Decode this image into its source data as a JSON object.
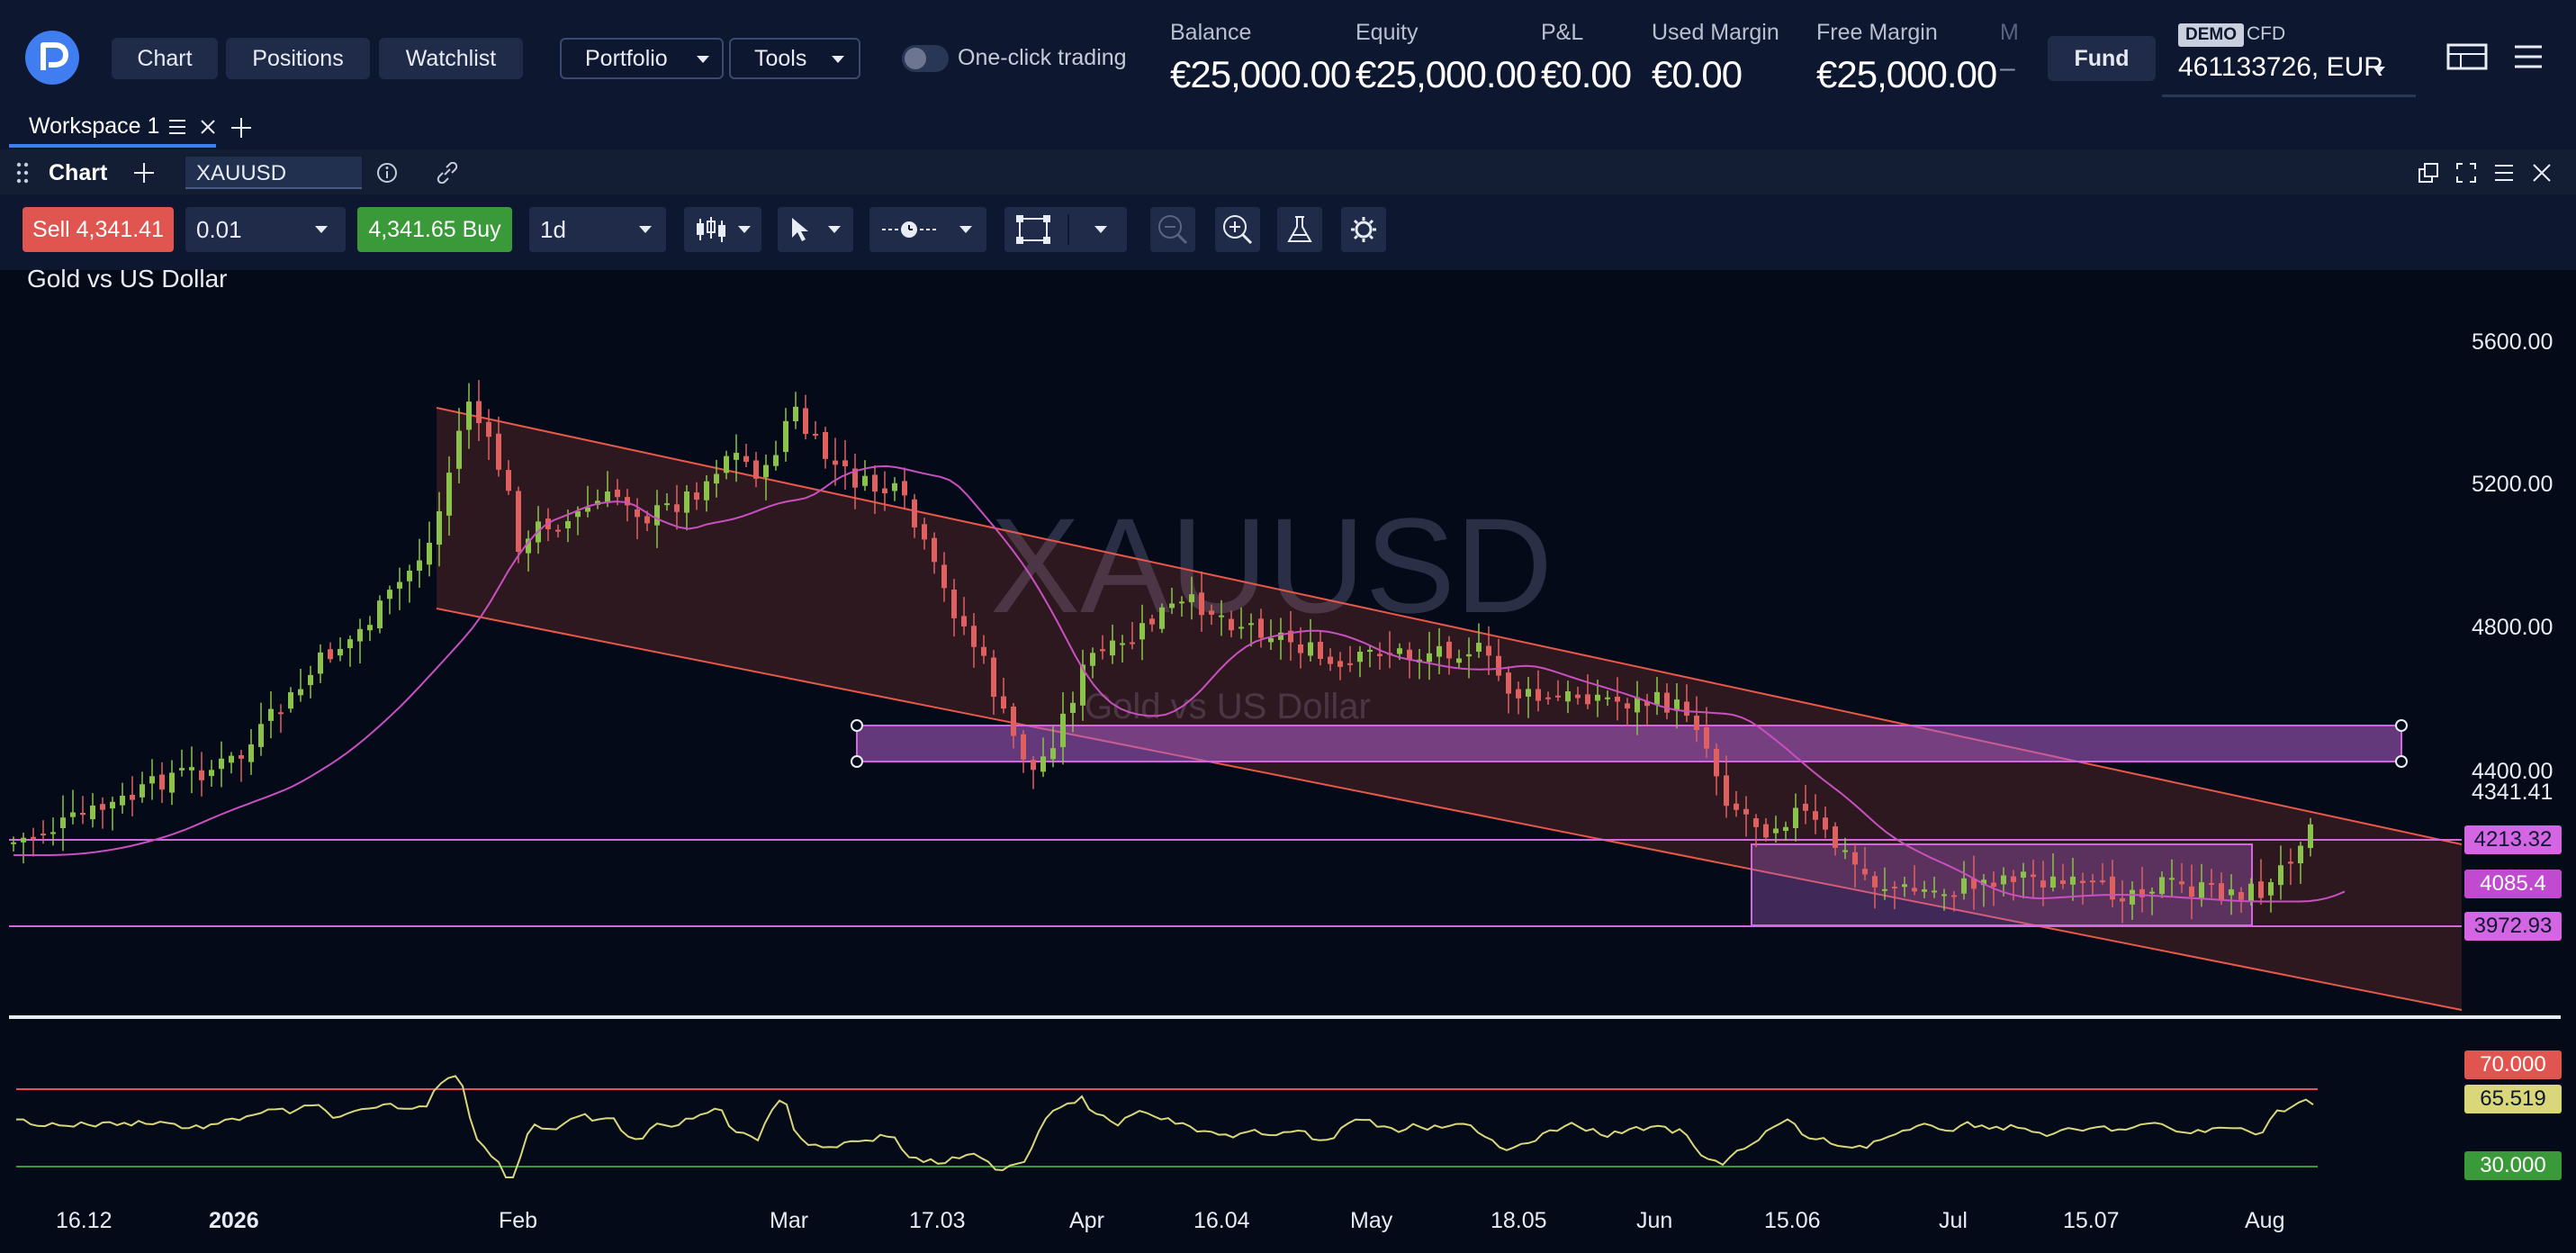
{
  "nav": {
    "tabs": [
      "Chart",
      "Positions",
      "Watchlist"
    ],
    "menus": [
      "Portfolio",
      "Tools"
    ],
    "one_click_label": "One-click trading",
    "fund_label": "Fund"
  },
  "account": {
    "stats": [
      {
        "label": "Balance",
        "value": "€25,000.00"
      },
      {
        "label": "Equity",
        "value": "€25,000.00"
      },
      {
        "label": "P&L",
        "value": "€0.00"
      },
      {
        "label": "Used Margin",
        "value": "€0.00"
      },
      {
        "label": "Free Margin",
        "value": "€25,000.00"
      },
      {
        "label": "M",
        "value": "–"
      }
    ],
    "badge": "DEMO",
    "type": "CFD",
    "number": "461133726, EUR"
  },
  "workspace": {
    "tab_label": "Workspace 1"
  },
  "panel": {
    "title": "Chart",
    "symbol": "XAUUSD"
  },
  "toolbar": {
    "sell_label": "Sell",
    "sell_price": "4,341.41",
    "quantity": "0.01",
    "buy_price": "4,341.65",
    "buy_label": "Buy",
    "timeframe": "1d"
  },
  "chart": {
    "instrument_name": "Gold vs US Dollar",
    "watermark_symbol": "XAUUSD",
    "watermark_name": "Gold vs US Dollar",
    "price_axis": [
      "5600.00",
      "5200.00",
      "4800.00",
      "4400.00"
    ],
    "last_price": "4341.41",
    "level_labels": [
      {
        "value": "4213.32",
        "color": "#d466e4"
      },
      {
        "value": "4085.4",
        "color": "#c04ad0"
      },
      {
        "value": "3972.93",
        "color": "#d466e4"
      }
    ],
    "rsi_labels": [
      {
        "value": "70.000",
        "color": "#e0554f"
      },
      {
        "value": "65.519",
        "color": "#d9d77a"
      },
      {
        "value": "30.000",
        "color": "#3a9a3a"
      }
    ],
    "date_axis": [
      "16.12",
      "2026",
      "Feb",
      "Mar",
      "17.03",
      "Apr",
      "16.04",
      "May",
      "18.05",
      "Jun",
      "15.06",
      "Jul",
      "15.07",
      "Aug"
    ]
  },
  "colors": {
    "bull": "#8bc34a",
    "bear": "#e06060",
    "ma": "#c850c0",
    "rsi": "#d9d77a",
    "channel": "#e8584a"
  }
}
